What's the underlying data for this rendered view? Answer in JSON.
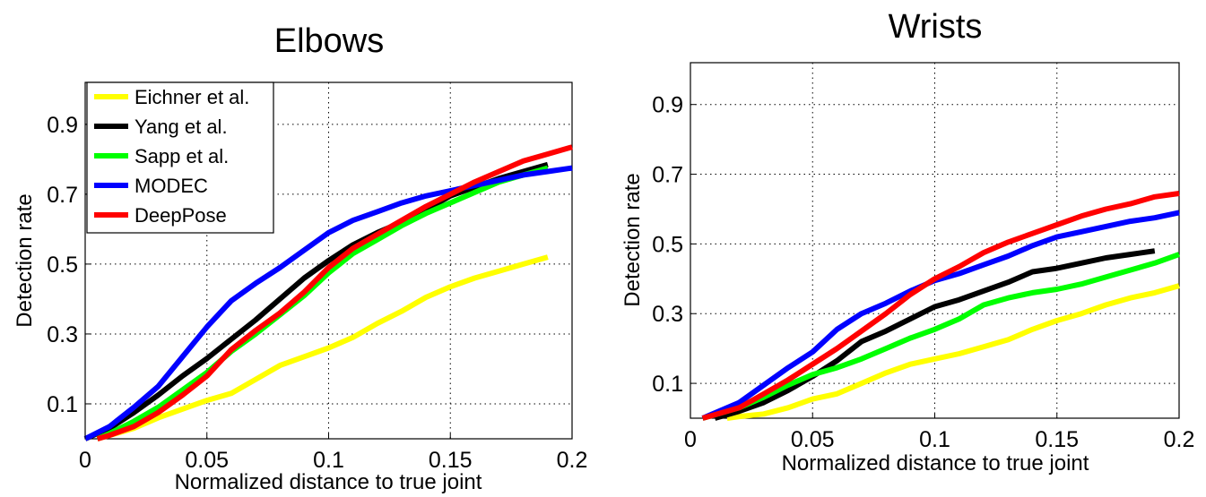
{
  "chart_data": [
    {
      "type": "line",
      "title": "Elbows",
      "xlabel": "Normalized distance to true joint",
      "ylabel": "Detection rate",
      "xlim": [
        0,
        0.2
      ],
      "ylim": [
        0,
        1.02
      ],
      "xticks": [
        "0",
        "0.05",
        "0.1",
        "0.15",
        "0.2"
      ],
      "yticks": [
        "0.1",
        "0.3",
        "0.5",
        "0.7",
        "0.9"
      ],
      "grid": true,
      "legend": "top-left",
      "series": [
        {
          "name": "Eichner et al.",
          "color": "#ffff00",
          "points": [
            [
              0.005,
              0
            ],
            [
              0.01,
              0.01
            ],
            [
              0.02,
              0.03
            ],
            [
              0.03,
              0.06
            ],
            [
              0.04,
              0.085
            ],
            [
              0.05,
              0.11
            ],
            [
              0.06,
              0.13
            ],
            [
              0.07,
              0.17
            ],
            [
              0.08,
              0.21
            ],
            [
              0.09,
              0.235
            ],
            [
              0.1,
              0.26
            ],
            [
              0.11,
              0.29
            ],
            [
              0.12,
              0.33
            ],
            [
              0.13,
              0.365
            ],
            [
              0.14,
              0.405
            ],
            [
              0.15,
              0.435
            ],
            [
              0.16,
              0.46
            ],
            [
              0.17,
              0.48
            ],
            [
              0.18,
              0.5
            ],
            [
              0.19,
              0.52
            ]
          ]
        },
        {
          "name": "Yang et al.",
          "color": "#000000",
          "points": [
            [
              0,
              0
            ],
            [
              0.01,
              0.03
            ],
            [
              0.02,
              0.075
            ],
            [
              0.03,
              0.125
            ],
            [
              0.04,
              0.18
            ],
            [
              0.05,
              0.23
            ],
            [
              0.06,
              0.285
            ],
            [
              0.07,
              0.34
            ],
            [
              0.08,
              0.4
            ],
            [
              0.09,
              0.46
            ],
            [
              0.1,
              0.51
            ],
            [
              0.11,
              0.555
            ],
            [
              0.12,
              0.59
            ],
            [
              0.13,
              0.62
            ],
            [
              0.14,
              0.655
            ],
            [
              0.15,
              0.695
            ],
            [
              0.16,
              0.72
            ],
            [
              0.17,
              0.745
            ],
            [
              0.18,
              0.765
            ],
            [
              0.19,
              0.785
            ]
          ]
        },
        {
          "name": "Sapp et al.",
          "color": "#00ff00",
          "points": [
            [
              0.005,
              0
            ],
            [
              0.01,
              0.015
            ],
            [
              0.02,
              0.05
            ],
            [
              0.03,
              0.09
            ],
            [
              0.04,
              0.14
            ],
            [
              0.05,
              0.19
            ],
            [
              0.06,
              0.25
            ],
            [
              0.07,
              0.3
            ],
            [
              0.08,
              0.355
            ],
            [
              0.09,
              0.41
            ],
            [
              0.1,
              0.475
            ],
            [
              0.11,
              0.53
            ],
            [
              0.12,
              0.57
            ],
            [
              0.13,
              0.61
            ],
            [
              0.14,
              0.645
            ],
            [
              0.15,
              0.675
            ],
            [
              0.16,
              0.705
            ],
            [
              0.17,
              0.735
            ],
            [
              0.18,
              0.755
            ],
            [
              0.19,
              0.775
            ]
          ]
        },
        {
          "name": "MODEC",
          "color": "#0000ff",
          "points": [
            [
              0,
              0
            ],
            [
              0.01,
              0.035
            ],
            [
              0.02,
              0.09
            ],
            [
              0.03,
              0.15
            ],
            [
              0.04,
              0.235
            ],
            [
              0.05,
              0.32
            ],
            [
              0.06,
              0.395
            ],
            [
              0.07,
              0.445
            ],
            [
              0.08,
              0.49
            ],
            [
              0.09,
              0.54
            ],
            [
              0.1,
              0.59
            ],
            [
              0.11,
              0.625
            ],
            [
              0.12,
              0.65
            ],
            [
              0.13,
              0.675
            ],
            [
              0.14,
              0.695
            ],
            [
              0.15,
              0.71
            ],
            [
              0.16,
              0.725
            ],
            [
              0.17,
              0.74
            ],
            [
              0.18,
              0.755
            ],
            [
              0.19,
              0.765
            ],
            [
              0.2,
              0.775
            ]
          ]
        },
        {
          "name": "DeepPose",
          "color": "#ff0000",
          "points": [
            [
              0.005,
              0
            ],
            [
              0.01,
              0.01
            ],
            [
              0.02,
              0.035
            ],
            [
              0.03,
              0.075
            ],
            [
              0.04,
              0.125
            ],
            [
              0.05,
              0.18
            ],
            [
              0.06,
              0.255
            ],
            [
              0.07,
              0.31
            ],
            [
              0.08,
              0.36
            ],
            [
              0.09,
              0.42
            ],
            [
              0.1,
              0.49
            ],
            [
              0.11,
              0.545
            ],
            [
              0.12,
              0.585
            ],
            [
              0.13,
              0.625
            ],
            [
              0.14,
              0.665
            ],
            [
              0.15,
              0.7
            ],
            [
              0.16,
              0.735
            ],
            [
              0.17,
              0.765
            ],
            [
              0.18,
              0.795
            ],
            [
              0.19,
              0.815
            ],
            [
              0.2,
              0.835
            ]
          ]
        }
      ]
    },
    {
      "type": "line",
      "title": "Wrists",
      "xlabel": "Normalized distance to true joint",
      "ylabel": "Detection rate",
      "xlim": [
        0,
        0.2
      ],
      "ylim": [
        0,
        1.02
      ],
      "xticks": [
        "0",
        "0.05",
        "0.1",
        "0.15",
        "0.2"
      ],
      "yticks": [
        "0.1",
        "0.3",
        "0.5",
        "0.7",
        "0.9"
      ],
      "grid": true,
      "legend": "none",
      "series": [
        {
          "name": "Eichner et al.",
          "color": "#ffff00",
          "points": [
            [
              0.015,
              0
            ],
            [
              0.02,
              0.005
            ],
            [
              0.03,
              0.012
            ],
            [
              0.04,
              0.03
            ],
            [
              0.05,
              0.055
            ],
            [
              0.06,
              0.07
            ],
            [
              0.07,
              0.1
            ],
            [
              0.08,
              0.13
            ],
            [
              0.09,
              0.155
            ],
            [
              0.1,
              0.17
            ],
            [
              0.11,
              0.185
            ],
            [
              0.12,
              0.205
            ],
            [
              0.13,
              0.225
            ],
            [
              0.14,
              0.255
            ],
            [
              0.15,
              0.28
            ],
            [
              0.16,
              0.3
            ],
            [
              0.17,
              0.325
            ],
            [
              0.18,
              0.345
            ],
            [
              0.19,
              0.36
            ],
            [
              0.2,
              0.38
            ]
          ]
        },
        {
          "name": "Yang et al.",
          "color": "#000000",
          "points": [
            [
              0.01,
              0
            ],
            [
              0.02,
              0.02
            ],
            [
              0.03,
              0.045
            ],
            [
              0.04,
              0.08
            ],
            [
              0.05,
              0.12
            ],
            [
              0.06,
              0.165
            ],
            [
              0.07,
              0.22
            ],
            [
              0.08,
              0.25
            ],
            [
              0.09,
              0.285
            ],
            [
              0.1,
              0.32
            ],
            [
              0.11,
              0.34
            ],
            [
              0.12,
              0.365
            ],
            [
              0.13,
              0.39
            ],
            [
              0.14,
              0.42
            ],
            [
              0.15,
              0.43
            ],
            [
              0.16,
              0.445
            ],
            [
              0.17,
              0.46
            ],
            [
              0.18,
              0.47
            ],
            [
              0.19,
              0.48
            ]
          ]
        },
        {
          "name": "Sapp et al.",
          "color": "#00ff00",
          "points": [
            [
              0.005,
              0
            ],
            [
              0.01,
              0.01
            ],
            [
              0.02,
              0.03
            ],
            [
              0.03,
              0.06
            ],
            [
              0.04,
              0.095
            ],
            [
              0.05,
              0.125
            ],
            [
              0.06,
              0.145
            ],
            [
              0.07,
              0.17
            ],
            [
              0.08,
              0.2
            ],
            [
              0.09,
              0.23
            ],
            [
              0.1,
              0.255
            ],
            [
              0.11,
              0.285
            ],
            [
              0.12,
              0.325
            ],
            [
              0.13,
              0.345
            ],
            [
              0.14,
              0.36
            ],
            [
              0.15,
              0.37
            ],
            [
              0.16,
              0.385
            ],
            [
              0.17,
              0.405
            ],
            [
              0.18,
              0.425
            ],
            [
              0.19,
              0.445
            ],
            [
              0.2,
              0.47
            ]
          ]
        },
        {
          "name": "MODEC",
          "color": "#0000ff",
          "points": [
            [
              0.005,
              0
            ],
            [
              0.01,
              0.015
            ],
            [
              0.02,
              0.045
            ],
            [
              0.03,
              0.095
            ],
            [
              0.04,
              0.145
            ],
            [
              0.05,
              0.19
            ],
            [
              0.06,
              0.255
            ],
            [
              0.07,
              0.3
            ],
            [
              0.08,
              0.33
            ],
            [
              0.09,
              0.365
            ],
            [
              0.1,
              0.395
            ],
            [
              0.11,
              0.415
            ],
            [
              0.12,
              0.44
            ],
            [
              0.13,
              0.465
            ],
            [
              0.14,
              0.495
            ],
            [
              0.15,
              0.52
            ],
            [
              0.16,
              0.535
            ],
            [
              0.17,
              0.55
            ],
            [
              0.18,
              0.565
            ],
            [
              0.19,
              0.575
            ],
            [
              0.2,
              0.59
            ]
          ]
        },
        {
          "name": "DeepPose",
          "color": "#ff0000",
          "points": [
            [
              0.005,
              0
            ],
            [
              0.01,
              0.01
            ],
            [
              0.02,
              0.03
            ],
            [
              0.03,
              0.07
            ],
            [
              0.04,
              0.11
            ],
            [
              0.05,
              0.155
            ],
            [
              0.06,
              0.2
            ],
            [
              0.07,
              0.25
            ],
            [
              0.08,
              0.3
            ],
            [
              0.09,
              0.355
            ],
            [
              0.1,
              0.4
            ],
            [
              0.11,
              0.435
            ],
            [
              0.12,
              0.475
            ],
            [
              0.13,
              0.505
            ],
            [
              0.14,
              0.53
            ],
            [
              0.15,
              0.555
            ],
            [
              0.16,
              0.58
            ],
            [
              0.17,
              0.6
            ],
            [
              0.18,
              0.615
            ],
            [
              0.19,
              0.635
            ],
            [
              0.2,
              0.645
            ]
          ]
        }
      ]
    }
  ]
}
